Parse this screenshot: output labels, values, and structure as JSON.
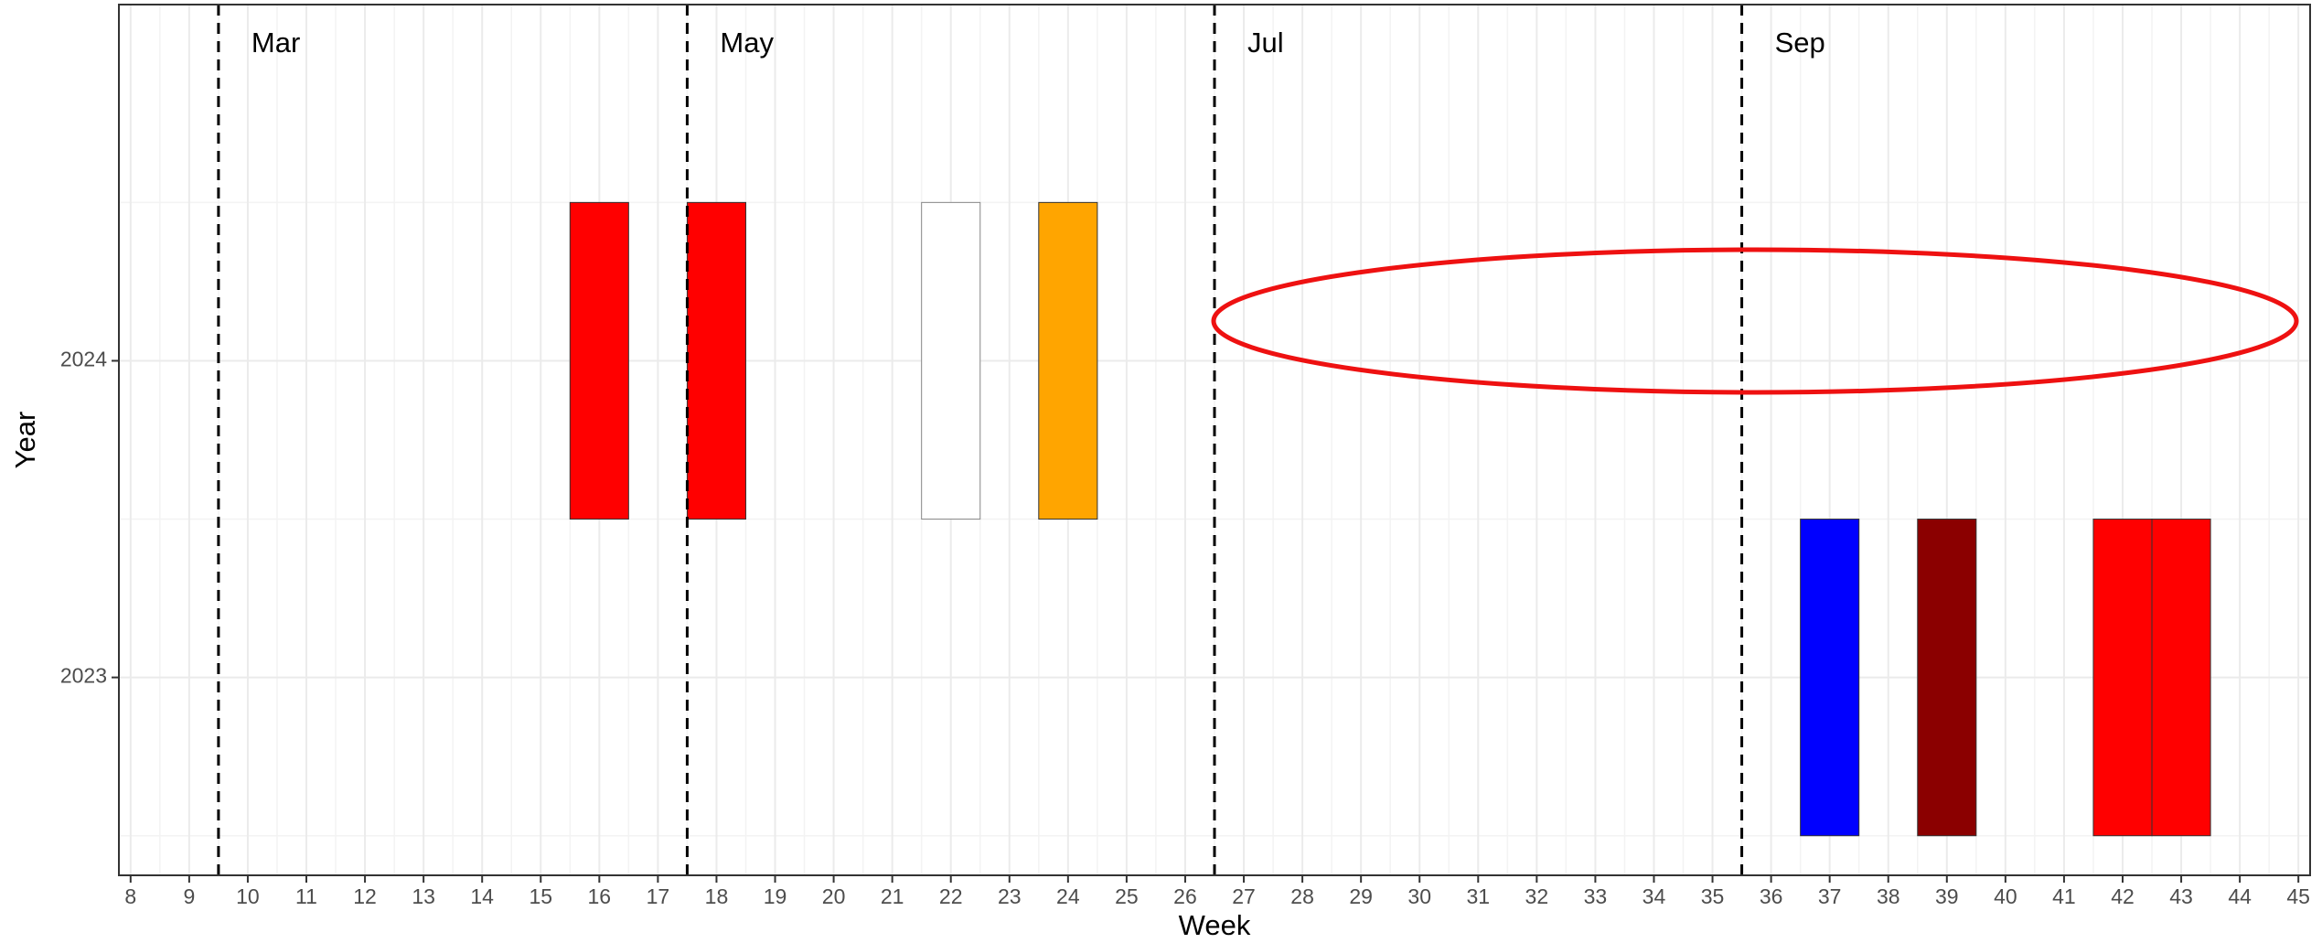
{
  "chart_data": {
    "type": "tile",
    "xlabel": "Week",
    "ylabel": "Year",
    "xlim": [
      7.8,
      45.2
    ],
    "ylim": [
      2022.375,
      2025.125
    ],
    "xticks": [
      8,
      9,
      10,
      11,
      12,
      13,
      14,
      15,
      16,
      17,
      18,
      19,
      20,
      21,
      22,
      23,
      24,
      25,
      26,
      27,
      28,
      29,
      30,
      31,
      32,
      33,
      34,
      35,
      36,
      37,
      38,
      39,
      40,
      41,
      42,
      43,
      44,
      45
    ],
    "yticks": [
      2023,
      2024
    ],
    "grid": true,
    "tiles": {
      "x": [
        16,
        18,
        22,
        24,
        37,
        39,
        42,
        43
      ],
      "y": [
        2024,
        2024,
        2024,
        2024,
        2023,
        2023,
        2023,
        2023
      ],
      "colors": [
        "#ff0000",
        "#ff0000",
        "#ffffff",
        "#ffa500",
        "#0000ff",
        "#8b0000",
        "#ff0000",
        "#ff0000"
      ]
    },
    "vlines": {
      "x": [
        9.5,
        17.5,
        26.5,
        35.5
      ],
      "labels": [
        "Mar",
        "May",
        "Jul",
        "Sep"
      ]
    }
  }
}
